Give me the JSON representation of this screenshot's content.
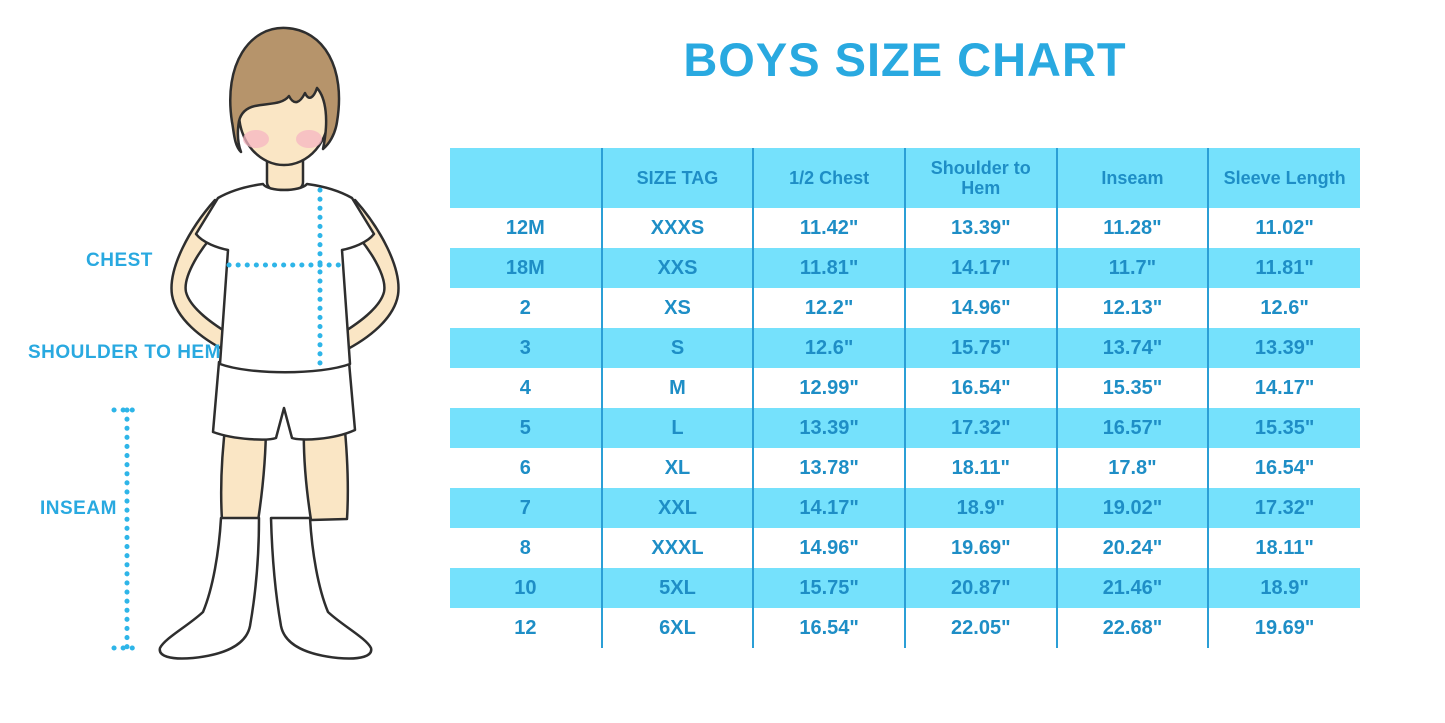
{
  "title": "BOYS SIZE CHART",
  "colors": {
    "accent_blue": "#29a9e0",
    "table_text_blue": "#1e8ec6",
    "table_fill_cyan": "#75e1fc",
    "divider_blue": "#2b9fd6",
    "dotted_line_cyan": "#2eb5e8",
    "hair_brown": "#b6946b",
    "skin": "#fae6c5"
  },
  "figure": {
    "labels": {
      "chest": "CHEST",
      "shoulder_to_hem": "SHOULDER TO HEM",
      "inseam": "INSEAM"
    }
  },
  "chart_data": {
    "type": "table",
    "title": "BOYS SIZE CHART",
    "columns": [
      "",
      "SIZE TAG",
      "1/2 Chest",
      "Shoulder to Hem",
      "Inseam",
      "Sleeve Length"
    ],
    "rows": [
      [
        "12M",
        "XXXS",
        "11.42\"",
        "13.39\"",
        "11.28\"",
        "11.02\""
      ],
      [
        "18M",
        "XXS",
        "11.81\"",
        "14.17\"",
        "11.7\"",
        "11.81\""
      ],
      [
        "2",
        "XS",
        "12.2\"",
        "14.96\"",
        "12.13\"",
        "12.6\""
      ],
      [
        "3",
        "S",
        "12.6\"",
        "15.75\"",
        "13.74\"",
        "13.39\""
      ],
      [
        "4",
        "M",
        "12.99\"",
        "16.54\"",
        "15.35\"",
        "14.17\""
      ],
      [
        "5",
        "L",
        "13.39\"",
        "17.32\"",
        "16.57\"",
        "15.35\""
      ],
      [
        "6",
        "XL",
        "13.78\"",
        "18.11\"",
        "17.8\"",
        "16.54\""
      ],
      [
        "7",
        "XXL",
        "14.17\"",
        "18.9\"",
        "19.02\"",
        "17.32\""
      ],
      [
        "8",
        "XXXL",
        "14.96\"",
        "19.69\"",
        "20.24\"",
        "18.11\""
      ],
      [
        "10",
        "5XL",
        "15.75\"",
        "20.87\"",
        "21.46\"",
        "18.9\""
      ],
      [
        "12",
        "6XL",
        "16.54\"",
        "22.05\"",
        "22.68\"",
        "19.69\""
      ]
    ]
  }
}
